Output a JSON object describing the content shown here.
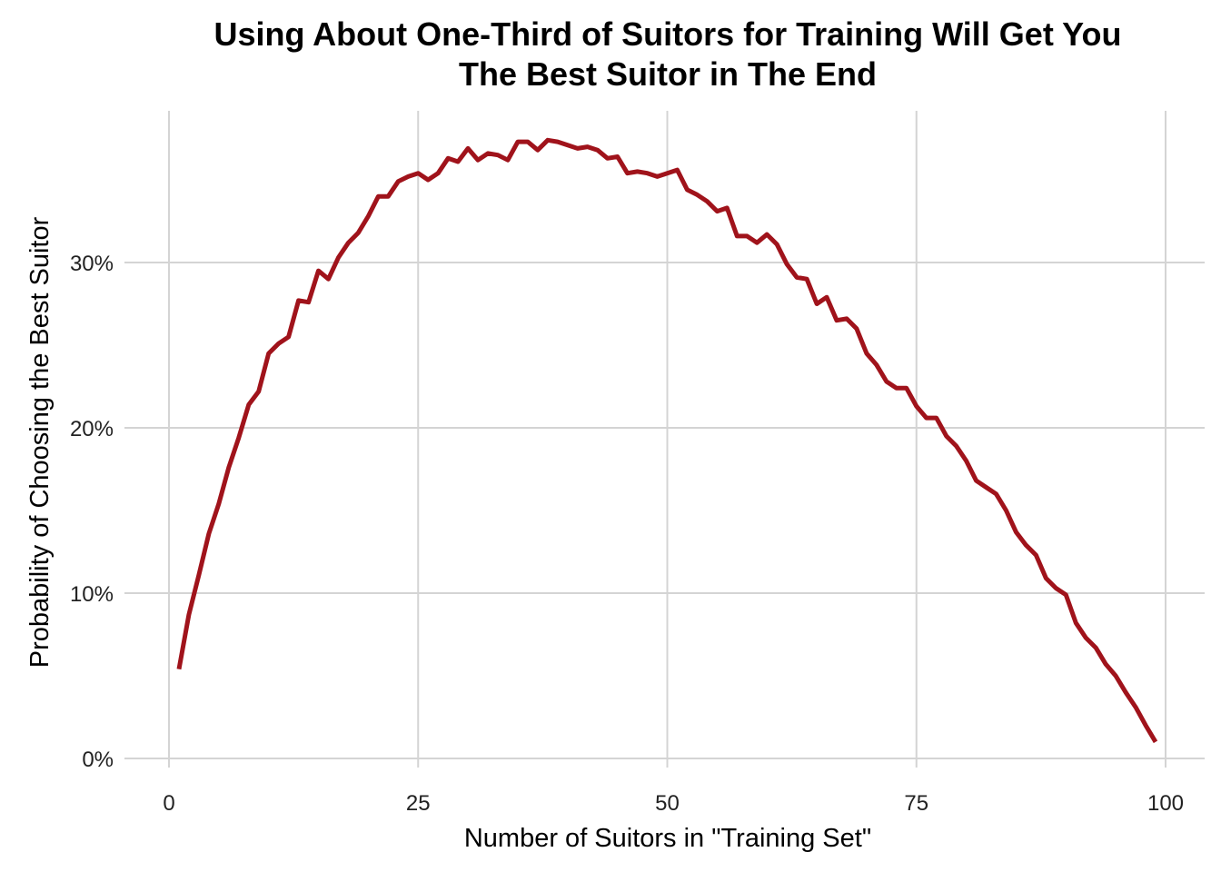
{
  "chart_data": {
    "type": "line",
    "title_lines": [
      "Using About One-Third of Suitors for Training Will Get You",
      "The Best Suitor in The End"
    ],
    "xlabel": "Number of Suitors in \"Training Set\"",
    "ylabel": "Probability of Choosing the Best Suitor",
    "xlim": [
      0,
      100
    ],
    "ylim": [
      0,
      0.37
    ],
    "x_ticks": [
      0,
      25,
      50,
      75,
      100
    ],
    "x_tick_labels": [
      "0",
      "25",
      "50",
      "75",
      "100"
    ],
    "y_ticks": [
      0,
      0.1,
      0.2,
      0.3
    ],
    "y_tick_labels": [
      "0%",
      "10%",
      "20%",
      "30%"
    ],
    "grid": true,
    "line_color": "#a0131b",
    "series": [
      {
        "x": [
          1,
          2,
          3,
          4,
          5,
          6,
          7,
          8,
          9,
          10,
          11,
          12,
          13,
          14,
          15,
          16,
          17,
          18,
          19,
          20,
          21,
          22,
          23,
          24,
          25,
          26,
          27,
          28,
          29,
          30,
          31,
          32,
          33,
          34,
          35,
          36,
          37,
          38,
          39,
          40,
          41,
          42,
          43,
          44,
          45,
          46,
          47,
          48,
          49,
          50,
          51,
          52,
          53,
          54,
          55,
          56,
          57,
          58,
          59,
          60,
          61,
          62,
          63,
          64,
          65,
          66,
          67,
          68,
          69,
          70,
          71,
          72,
          73,
          74,
          75,
          76,
          77,
          78,
          79,
          80,
          81,
          82,
          83,
          84,
          85,
          86,
          87,
          88,
          89,
          90,
          91,
          92,
          93,
          94,
          95,
          96,
          97,
          98,
          99
        ],
        "values": [
          0.054,
          0.087,
          0.111,
          0.136,
          0.154,
          0.176,
          0.194,
          0.214,
          0.222,
          0.245,
          0.251,
          0.255,
          0.277,
          0.276,
          0.295,
          0.29,
          0.303,
          0.312,
          0.318,
          0.328,
          0.34,
          0.34,
          0.349,
          0.352,
          0.354,
          0.35,
          0.354,
          0.363,
          0.361,
          0.369,
          0.362,
          0.366,
          0.365,
          0.362,
          0.373,
          0.373,
          0.368,
          0.374,
          0.373,
          0.371,
          0.369,
          0.37,
          0.368,
          0.363,
          0.364,
          0.354,
          0.355,
          0.354,
          0.352,
          0.354,
          0.356,
          0.344,
          0.341,
          0.337,
          0.331,
          0.333,
          0.316,
          0.316,
          0.312,
          0.317,
          0.311,
          0.299,
          0.291,
          0.29,
          0.275,
          0.279,
          0.265,
          0.266,
          0.26,
          0.245,
          0.238,
          0.228,
          0.224,
          0.224,
          0.213,
          0.206,
          0.206,
          0.195,
          0.189,
          0.18,
          0.168,
          0.164,
          0.16,
          0.15,
          0.137,
          0.129,
          0.123,
          0.109,
          0.103,
          0.099,
          0.082,
          0.073,
          0.067,
          0.057,
          0.05,
          0.04,
          0.031,
          0.02,
          0.01
        ]
      }
    ]
  }
}
